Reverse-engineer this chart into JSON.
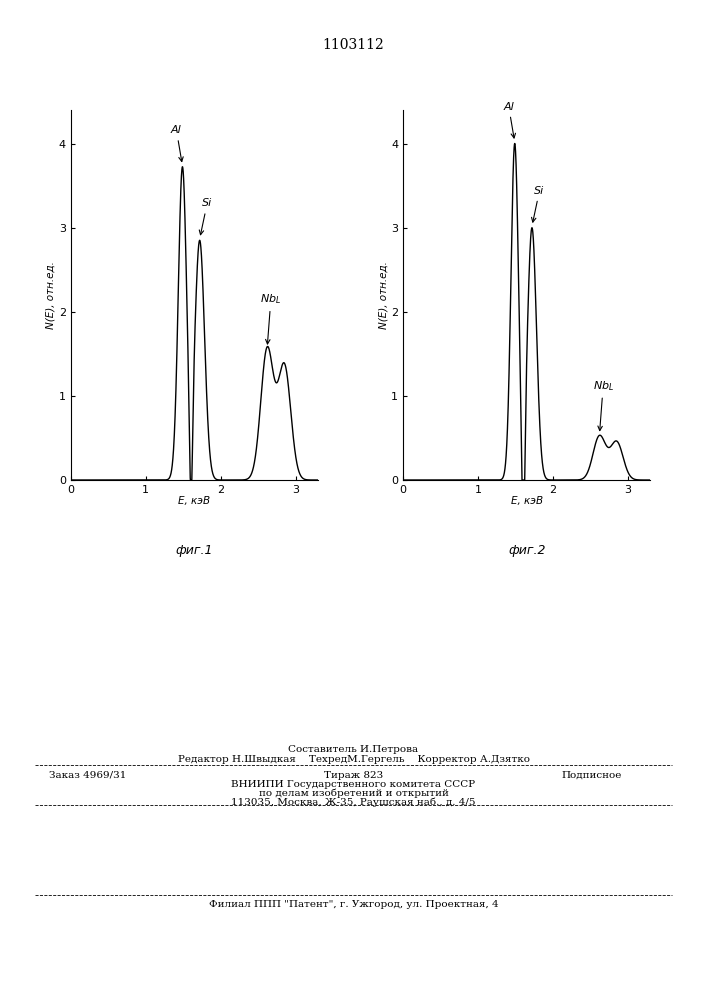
{
  "title": "1103112",
  "xlabel": "E, кэВ",
  "ylabel": "N(E), отн.ед.",
  "fig1_caption": "фиг.1",
  "fig2_caption": "фиг.2",
  "xlim": [
    0,
    3.3
  ],
  "ylim": [
    0,
    4.4
  ],
  "yticks": [
    0,
    1,
    2,
    3,
    4
  ],
  "xticks": [
    0,
    1,
    2,
    3
  ],
  "fig1": {
    "al_mu": 1.49,
    "al_sigma": 0.055,
    "al_amp": 3.72,
    "si_mu": 1.72,
    "si_sigma": 0.065,
    "si_amp": 2.85,
    "nbl_mu": 2.62,
    "nbl_sigma": 0.085,
    "nbl_amp": 1.55,
    "nbl2_mu": 2.85,
    "nbl2_sigma": 0.085,
    "nbl2_amp": 1.35,
    "valley_mu": 1.605,
    "valley_sigma": 0.02,
    "valley_amp": -1.2
  },
  "fig2": {
    "al_mu": 1.49,
    "al_sigma": 0.05,
    "al_amp": 4.0,
    "si_mu": 1.72,
    "si_sigma": 0.06,
    "si_amp": 3.0,
    "nbl_mu": 2.62,
    "nbl_sigma": 0.085,
    "nbl_amp": 0.52,
    "nbl2_mu": 2.85,
    "nbl2_sigma": 0.085,
    "nbl2_amp": 0.45,
    "valley_mu": 1.605,
    "valley_sigma": 0.02,
    "valley_amp": -1.4
  },
  "footer_sestavitel": "Составитель И.Петрова",
  "footer_redaktor": "Редактор Н.Швыдкая",
  "footer_tehred": "ТехредМ.Гергель",
  "footer_korrektor": "Корректор А.Дзятко",
  "footer_zakaz": "Заказ 4969/31",
  "footer_tirazh": "Тираж 823",
  "footer_podpisnoe": "Подписное",
  "footer_vniipи": "ВНИИПИ Государственного комитета СССР",
  "footer_po_delam": "по делам изобретений и открытий",
  "footer_address": "113035, Москва, Ж-35, Раушская наб., д. 4/5",
  "footer_filial": "Филиал ППП \"Патент\", г. Ужгород, ул. Проектная, 4"
}
